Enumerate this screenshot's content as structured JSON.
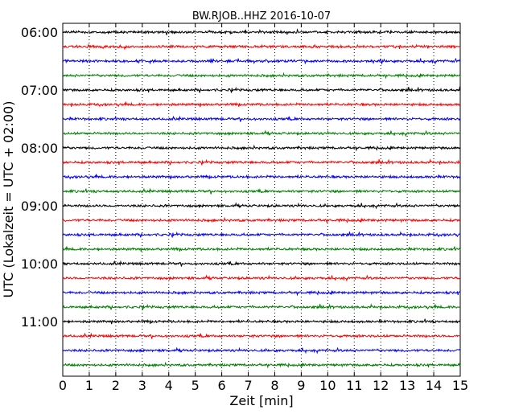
{
  "chart_data": {
    "type": "line",
    "title": "BW.RJOB..HHZ 2016-10-07",
    "xlabel": "Zeit  [min]",
    "ylabel": "UTC (Lokalzeit = UTC + 02:00)",
    "xlim": [
      0,
      15
    ],
    "x_ticks": [
      "0",
      "1",
      "2",
      "3",
      "4",
      "5",
      "6",
      "7",
      "8",
      "9",
      "10",
      "11",
      "12",
      "13",
      "14",
      "15"
    ],
    "y_ticks": [
      "06:00",
      "07:00",
      "08:00",
      "09:00",
      "10:00",
      "11:00"
    ],
    "grid": "vertical dotted",
    "colors": [
      "#000000",
      "#ff0000",
      "#0000ff",
      "#008000"
    ],
    "trace_count": 24,
    "trace_interval_min": 15
  }
}
